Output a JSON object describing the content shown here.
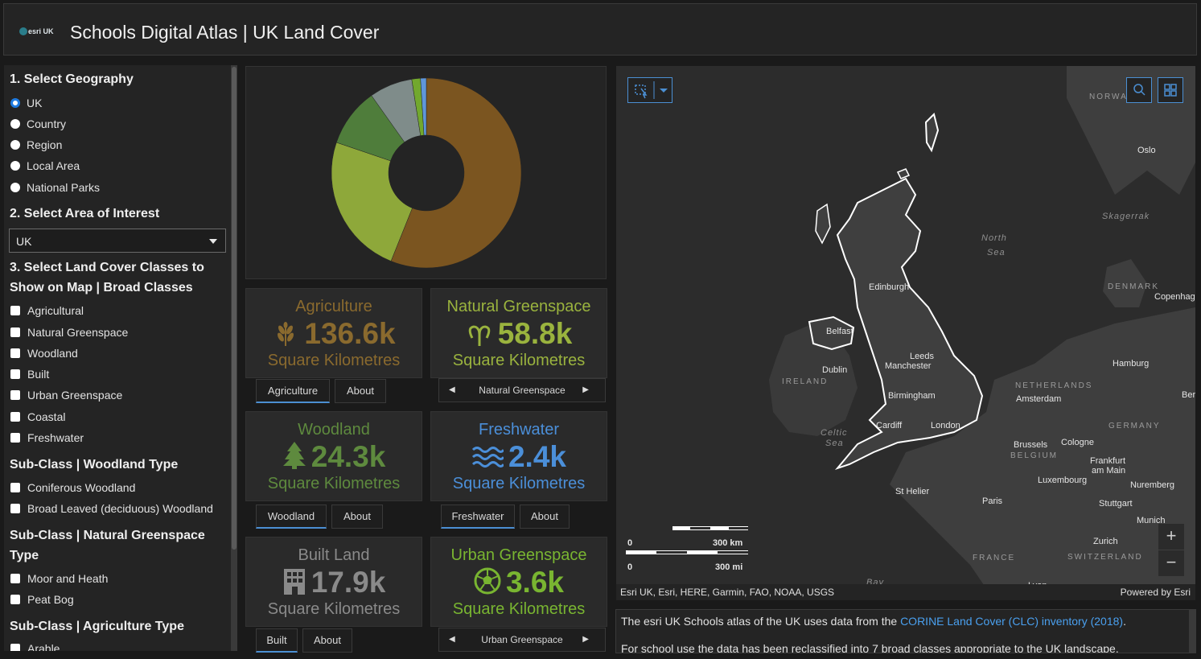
{
  "header": {
    "title": "Schools Digital Atlas | UK Land Cover",
    "logo_text": "esri UK"
  },
  "sidebar": {
    "geo_heading": "1. Select Geography",
    "geo_options": [
      "UK",
      "Country",
      "Region",
      "Local Area",
      "National Parks"
    ],
    "geo_selected": "UK",
    "area_heading": "2. Select Area of Interest",
    "area_value": "UK",
    "classes_heading_1": "3. Select Land Cover Classes to",
    "classes_heading_2": "Show on Map | Broad Classes",
    "classes": [
      "Agricultural",
      "Natural Greenspace",
      "Woodland",
      "Built",
      "Urban Greenspace",
      "Coastal",
      "Freshwater"
    ],
    "woodland_heading": "Sub-Class | Woodland Type",
    "woodland_types": [
      "Coniferous Woodland",
      "Broad Leaved (deciduous) Woodland"
    ],
    "greenspace_heading_1": "Sub-Class | Natural Greenspace",
    "greenspace_heading_2": "Type",
    "greenspace_types": [
      "Moor and Heath",
      "Peat Bog"
    ],
    "agri_heading": "Sub-Class | Agriculture Type",
    "agri_types": [
      "Arable"
    ]
  },
  "chart_data": {
    "type": "pie",
    "style": "donut",
    "slices": [
      {
        "value": 136.6,
        "color": "#7b5520"
      },
      {
        "value": 58.8,
        "color": "#8ea83a"
      },
      {
        "value": 24.3,
        "color": "#4f7d3b"
      },
      {
        "value": 17.9,
        "color": "#7f8c8a"
      },
      {
        "value": 3.6,
        "color": "#72a82e"
      },
      {
        "value": 2.4,
        "color": "#5f96da"
      }
    ]
  },
  "cards": [
    {
      "title": "Agriculture",
      "value": "136.6k",
      "unit": "Square Kilometres",
      "color": "#8a6a2e",
      "icon": "wheat-icon",
      "tabs": [
        "Agriculture",
        "About"
      ]
    },
    {
      "title": "Natural Greenspace",
      "value": "58.8k",
      "unit": "Square Kilometres",
      "color": "#9ab33e",
      "icon": "sprout-icon",
      "pager": "Natural Greenspace"
    },
    {
      "title": "Woodland",
      "value": "24.3k",
      "unit": "Square Kilometres",
      "color": "#5e8a3e",
      "icon": "tree-icon",
      "tabs": [
        "Woodland",
        "About"
      ]
    },
    {
      "title": "Freshwater",
      "value": "2.4k",
      "unit": "Square Kilometres",
      "color": "#4b8fd9",
      "icon": "water-icon",
      "tabs": [
        "Freshwater",
        "About"
      ]
    },
    {
      "title": "Built Land",
      "value": "17.9k",
      "unit": "Square Kilometres",
      "color": "#8a8a8a",
      "icon": "building-icon",
      "tabs": [
        "Built",
        "About"
      ]
    },
    {
      "title": "Urban Greenspace",
      "value": "3.6k",
      "unit": "Square Kilometres",
      "color": "#79b531",
      "icon": "football-icon",
      "pager": "Urban Greenspace"
    }
  ],
  "map": {
    "labels": {
      "oslo": "Oslo",
      "norway": "NORWA",
      "skagerrak": "Skagerrak",
      "north_sea_1": "North",
      "north_sea_2": "Sea",
      "denmark": "DENMARK",
      "copenhagen": "Copenhag",
      "edinburgh": "Edinburgh",
      "belfast": "Belfast",
      "dublin": "Dublin",
      "ireland": "IRELAND",
      "leeds": "Leeds",
      "manchester": "Manchester",
      "birmingham": "Birmingham",
      "cardiff": "Cardiff",
      "london": "London",
      "celtic_1": "Celtic",
      "celtic_2": "Sea",
      "netherlands": "NETHERLANDS",
      "amsterdam": "Amsterdam",
      "hamburg": "Hamburg",
      "berlin": "Ber",
      "germany": "GERMANY",
      "brussels": "Brussels",
      "belgium": "BELGIUM",
      "cologne": "Cologne",
      "frankfurt_1": "Frankfurt",
      "frankfurt_2": "am Main",
      "luxembourg": "Luxembourg",
      "nuremberg": "Nuremberg",
      "st_helier": "St Helier",
      "paris": "Paris",
      "stuttgart": "Stuttgart",
      "munich": "Munich",
      "zurich": "Zurich",
      "switzerland": "SWITZERLAND",
      "france": "FRANCE",
      "bay": "Bay",
      "lyon": "Lyon"
    },
    "scale_km": "300 km",
    "scale_mi": "300 mi",
    "scale_zero": "0",
    "attribution": "Esri UK, Esri, HERE, Garmin, FAO, NOAA, USGS",
    "powered": "Powered by Esri",
    "zoom_in": "+",
    "zoom_out": "−"
  },
  "info": {
    "line1_pre": "The esri UK Schools atlas of the UK uses data from the ",
    "line1_link": "CORINE Land Cover (CLC) inventory (2018)",
    "line1_post": ".",
    "line2": "For school use the data has been reclassified into 7 broad classes appropriate to the UK landscape."
  }
}
